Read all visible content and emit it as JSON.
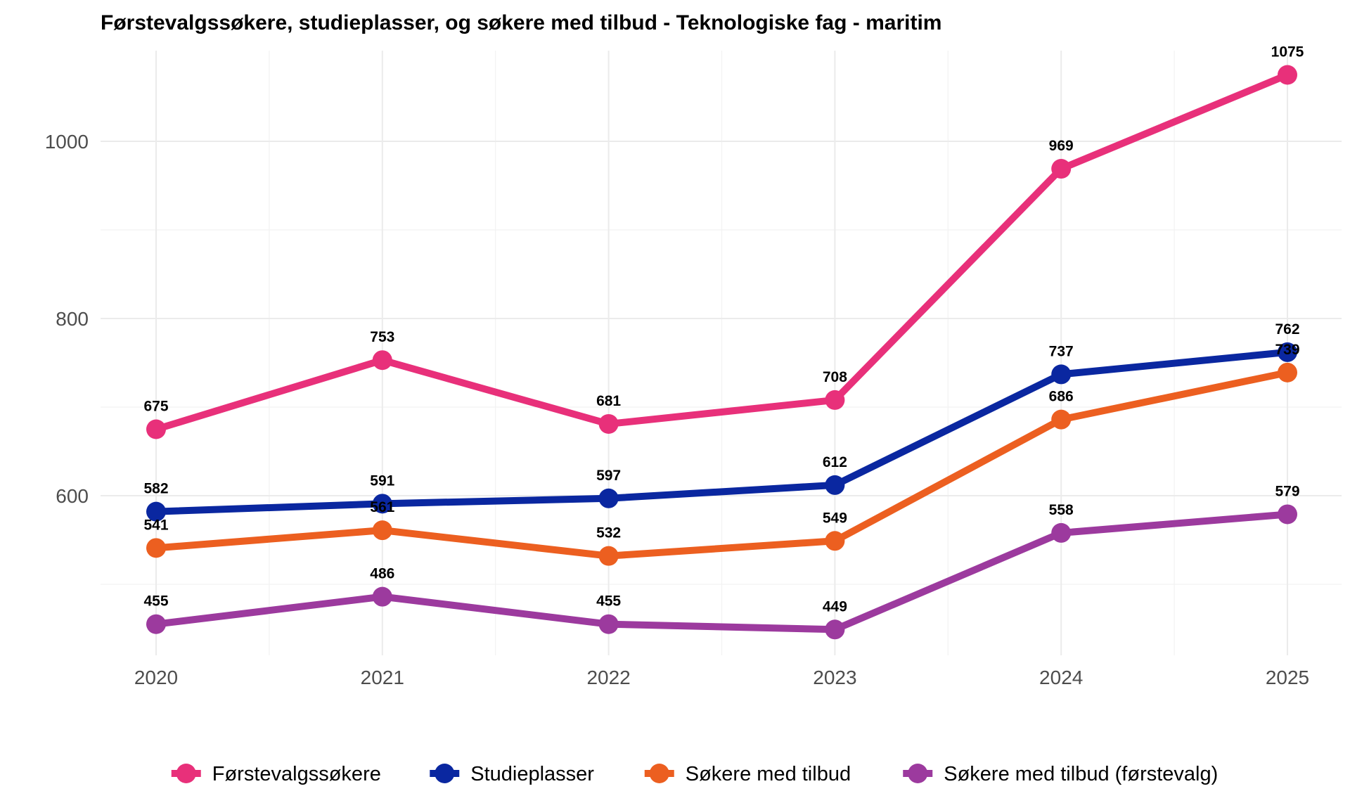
{
  "chart_data": {
    "type": "line",
    "title": "Førstevalgssøkere, studieplasser, og søkere med tilbud - Teknologiske fag - maritim",
    "xlabel": "",
    "ylabel": "",
    "x": [
      "2020",
      "2021",
      "2022",
      "2023",
      "2024",
      "2025"
    ],
    "y_ticks": [
      "600",
      "800",
      "1000"
    ],
    "ylim": [
      415,
      1095
    ],
    "grid": true,
    "legend_position": "bottom",
    "series": [
      {
        "name": "Førstevalgssøkere",
        "color": "#E8307A",
        "values": [
          675,
          753,
          681,
          708,
          969,
          1075
        ]
      },
      {
        "name": "Studieplasser",
        "color": "#0A27A0",
        "values": [
          582,
          591,
          597,
          612,
          737,
          762
        ]
      },
      {
        "name": "Søkere med tilbud",
        "color": "#EC5F20",
        "values": [
          541,
          561,
          532,
          549,
          686,
          739
        ]
      },
      {
        "name": "Søkere med tilbud (førstevalg)",
        "color": "#9C3A9E",
        "values": [
          455,
          486,
          455,
          449,
          558,
          579
        ]
      }
    ]
  }
}
